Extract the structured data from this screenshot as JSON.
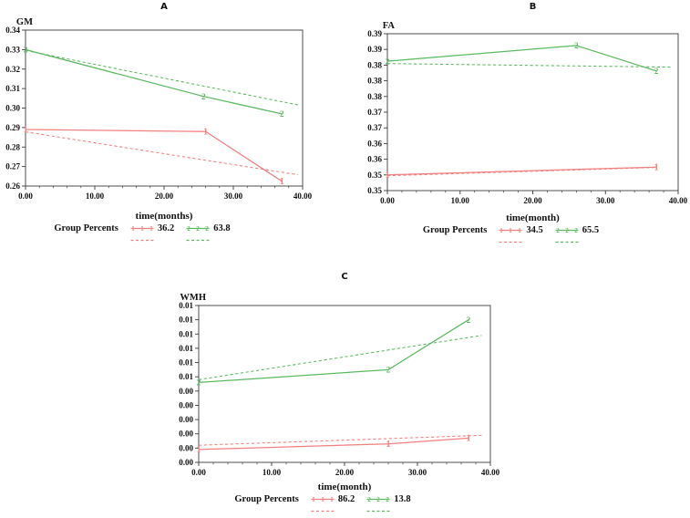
{
  "figure": {
    "background": "#ffffff",
    "colors": {
      "red": "#f28080",
      "green": "#5bb960",
      "axis": "#3c3c3c",
      "text": "#111111"
    }
  },
  "chart_data": [
    {
      "id": "A",
      "type": "line",
      "title": "A",
      "ylabel": "GM",
      "xlabel": "time(months)",
      "xlim": [
        0,
        40
      ],
      "x_tick_labels": [
        "0.00",
        "10.00",
        "20.00",
        "30.00",
        "40.00"
      ],
      "x_tick_values": [
        0,
        10,
        20,
        30,
        40
      ],
      "x_minor_step": 2,
      "ylim": [
        0.26,
        0.34
      ],
      "y_tick_labels_top_to_bottom": [
        "0.34",
        "0.33",
        "0.32",
        "0.31",
        "0.30",
        "0.29",
        "0.28",
        "0.27",
        "0.26"
      ],
      "grid": false,
      "legend": {
        "label": "Group Percents",
        "entries": [
          {
            "value": "36.2",
            "color": "red",
            "marker": "1"
          },
          {
            "value": "63.8",
            "color": "green",
            "marker": "2"
          }
        ]
      },
      "series": [
        {
          "name": "group-63.8-dashed",
          "color": "green",
          "style": "dashed",
          "marker": null,
          "points": [
            [
              0,
              0.3295
            ],
            [
              39.5,
              0.3015
            ]
          ]
        },
        {
          "name": "group-36.2-dashed",
          "color": "red",
          "style": "dashed",
          "marker": null,
          "points": [
            [
              0,
              0.2878
            ],
            [
              39.3,
              0.2658
            ]
          ]
        },
        {
          "name": "group-63.8-solid",
          "color": "green",
          "style": "solid",
          "marker": "2",
          "points": [
            [
              0,
              0.33
            ],
            [
              25.7,
              0.306
            ],
            [
              37,
              0.297
            ]
          ]
        },
        {
          "name": "group-36.2-solid",
          "color": "red",
          "style": "solid",
          "marker": "1",
          "points": [
            [
              0,
              0.289
            ],
            [
              26,
              0.288
            ],
            [
              37,
              0.2625
            ]
          ]
        }
      ]
    },
    {
      "id": "B",
      "type": "line",
      "title": "B",
      "ylabel": "FA",
      "xlabel": "time(month)",
      "xlim": [
        0,
        40
      ],
      "x_tick_labels": [
        "0.00",
        "10.00",
        "20.00",
        "30.00",
        "40.00"
      ],
      "x_tick_values": [
        0,
        10,
        20,
        30,
        40
      ],
      "x_minor_step": 2,
      "ylim": [
        0.35,
        0.39
      ],
      "y_tick_labels_top_to_bottom": [
        "0.39",
        "0.39",
        "0.38",
        "0.38",
        "0.38",
        "0.37",
        "0.37",
        "0.36",
        "0.36",
        "0.35",
        "0.35"
      ],
      "grid": false,
      "legend": {
        "label": "Group Percents",
        "entries": [
          {
            "value": "34.5",
            "color": "red",
            "marker": "1"
          },
          {
            "value": "65.5",
            "color": "green",
            "marker": "2"
          }
        ]
      },
      "series": [
        {
          "name": "group-65.5-dashed",
          "color": "green",
          "style": "dashed",
          "marker": null,
          "points": [
            [
              0,
              0.3824
            ],
            [
              39,
              0.3815
            ]
          ]
        },
        {
          "name": "group-34.5-dashed",
          "color": "red",
          "style": "dashed",
          "marker": null,
          "points": [
            [
              0,
              0.3538
            ],
            [
              37,
              0.3559
            ]
          ]
        },
        {
          "name": "group-65.5-solid",
          "color": "green",
          "style": "solid",
          "marker": "2",
          "points": [
            [
              0,
              0.383
            ],
            [
              26,
              0.387
            ],
            [
              37,
              0.3805
            ]
          ]
        },
        {
          "name": "group-34.5-solid",
          "color": "red",
          "style": "solid",
          "marker": "1",
          "points": [
            [
              0,
              0.354
            ],
            [
              37,
              0.356
            ]
          ]
        }
      ]
    },
    {
      "id": "C",
      "type": "line",
      "title": "C",
      "ylabel": "WMH",
      "xlabel": "time(month)",
      "xlim": [
        0,
        40
      ],
      "x_tick_labels": [
        "0.00",
        "10.00",
        "20.00",
        "30.00",
        "40.00"
      ],
      "x_tick_values": [
        0,
        10,
        20,
        30,
        40
      ],
      "x_minor_step": 2,
      "ylim": [
        0,
        0.011
      ],
      "y_tick_labels_top_to_bottom": [
        "0.01",
        "0.01",
        "0.01",
        "0.01",
        "0.01",
        "0.01",
        "0.00",
        "0.00",
        "0.00",
        "0.00",
        "0.00",
        "0.00"
      ],
      "grid": false,
      "legend": {
        "label": "Group Percents",
        "entries": [
          {
            "value": "86.2",
            "color": "red",
            "marker": "1"
          },
          {
            "value": "13.8",
            "color": "green",
            "marker": "2"
          }
        ]
      },
      "series": [
        {
          "name": "group-13.8-dashed",
          "color": "green",
          "style": "dashed",
          "marker": null,
          "points": [
            [
              0,
              0.0058
            ],
            [
              38.8,
              0.0089
            ]
          ]
        },
        {
          "name": "group-86.2-dashed",
          "color": "red",
          "style": "dashed",
          "marker": null,
          "points": [
            [
              0,
              0.0012
            ],
            [
              39,
              0.0019
            ]
          ]
        },
        {
          "name": "group-13.8-solid",
          "color": "green",
          "style": "solid",
          "marker": "2",
          "points": [
            [
              0,
              0.0056
            ],
            [
              26,
              0.0065
            ],
            [
              37,
              0.01
            ]
          ]
        },
        {
          "name": "group-86.2-solid",
          "color": "red",
          "style": "solid",
          "marker": "1",
          "points": [
            [
              0,
              0.0009
            ],
            [
              26,
              0.0013
            ],
            [
              37,
              0.0017
            ]
          ]
        }
      ]
    }
  ]
}
